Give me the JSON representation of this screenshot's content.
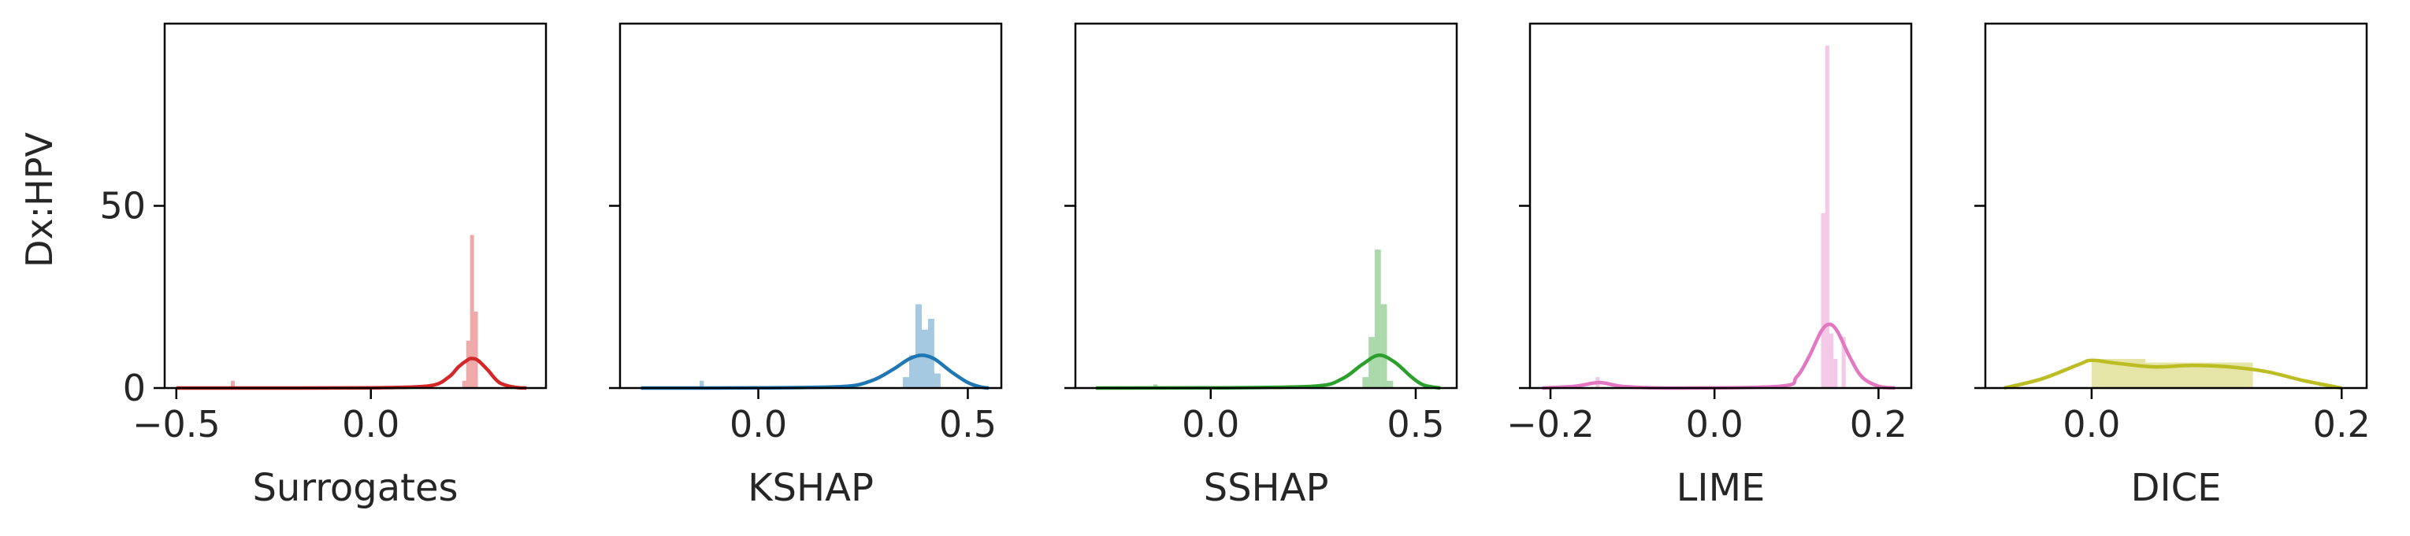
{
  "figure": {
    "ylabel": "Dx:HPV",
    "y_ticks": [
      "0",
      "50"
    ]
  },
  "chart_data": [
    {
      "type": "histogram-kde",
      "xlabel": "Surrogates",
      "color": "#d62728",
      "xlim": [
        -0.53,
        0.45
      ],
      "ylim": [
        0,
        100
      ],
      "x_ticks": [
        {
          "value": -0.5,
          "label": "−0.5"
        },
        {
          "value": 0.0,
          "label": "0.0"
        }
      ],
      "bars": [
        {
          "x0": -0.36,
          "x1": -0.35,
          "height": 2
        },
        {
          "x0": 0.235,
          "x1": 0.245,
          "height": 2
        },
        {
          "x0": 0.245,
          "x1": 0.255,
          "height": 13
        },
        {
          "x0": 0.255,
          "x1": 0.265,
          "height": 42
        },
        {
          "x0": 0.265,
          "x1": 0.275,
          "height": 21
        }
      ],
      "kde": [
        [
          -0.5,
          0
        ],
        [
          -0.2,
          0
        ],
        [
          0.0,
          0.05
        ],
        [
          0.15,
          0.6
        ],
        [
          0.2,
          3
        ],
        [
          0.225,
          5.8
        ],
        [
          0.25,
          7.8
        ],
        [
          0.26,
          8.1
        ],
        [
          0.275,
          7.6
        ],
        [
          0.3,
          5
        ],
        [
          0.33,
          1.5
        ],
        [
          0.37,
          0.2
        ],
        [
          0.4,
          0
        ]
      ]
    },
    {
      "type": "histogram-kde",
      "xlabel": "KSHAP",
      "color": "#1f77b4",
      "xlim": [
        -0.33,
        0.58
      ],
      "ylim": [
        0,
        100
      ],
      "x_ticks": [
        {
          "value": 0.0,
          "label": "0.0"
        },
        {
          "value": 0.5,
          "label": "0.5"
        }
      ],
      "bars": [
        {
          "x0": -0.14,
          "x1": -0.13,
          "height": 2
        },
        {
          "x0": 0.345,
          "x1": 0.36,
          "height": 3
        },
        {
          "x0": 0.36,
          "x1": 0.375,
          "height": 9
        },
        {
          "x0": 0.375,
          "x1": 0.39,
          "height": 23
        },
        {
          "x0": 0.39,
          "x1": 0.405,
          "height": 16
        },
        {
          "x0": 0.405,
          "x1": 0.42,
          "height": 19
        },
        {
          "x0": 0.42,
          "x1": 0.435,
          "height": 4
        }
      ],
      "kde": [
        [
          -0.28,
          0
        ],
        [
          0.0,
          0.05
        ],
        [
          0.2,
          0.4
        ],
        [
          0.27,
          2
        ],
        [
          0.32,
          5
        ],
        [
          0.36,
          8
        ],
        [
          0.39,
          9
        ],
        [
          0.42,
          8
        ],
        [
          0.46,
          4.5
        ],
        [
          0.5,
          1.5
        ],
        [
          0.53,
          0.3
        ],
        [
          0.55,
          0
        ]
      ]
    },
    {
      "type": "histogram-kde",
      "xlabel": "SSHAP",
      "color": "#2ca02c",
      "xlim": [
        -0.33,
        0.6
      ],
      "ylim": [
        0,
        100
      ],
      "x_ticks": [
        {
          "value": 0.0,
          "label": "0.0"
        },
        {
          "value": 0.5,
          "label": "0.5"
        }
      ],
      "bars": [
        {
          "x0": -0.14,
          "x1": -0.13,
          "height": 1
        },
        {
          "x0": 0.37,
          "x1": 0.385,
          "height": 3
        },
        {
          "x0": 0.385,
          "x1": 0.4,
          "height": 14
        },
        {
          "x0": 0.4,
          "x1": 0.415,
          "height": 38
        },
        {
          "x0": 0.415,
          "x1": 0.43,
          "height": 23
        },
        {
          "x0": 0.43,
          "x1": 0.445,
          "height": 2
        }
      ],
      "kde": [
        [
          -0.28,
          0
        ],
        [
          0.0,
          0.05
        ],
        [
          0.25,
          0.5
        ],
        [
          0.32,
          2.5
        ],
        [
          0.37,
          6.5
        ],
        [
          0.41,
          9
        ],
        [
          0.45,
          7
        ],
        [
          0.49,
          3
        ],
        [
          0.52,
          0.8
        ],
        [
          0.56,
          0
        ]
      ]
    },
    {
      "type": "histogram-kde",
      "xlabel": "LIME",
      "color": "#e377c2",
      "xlim": [
        -0.225,
        0.24
      ],
      "ylim": [
        0,
        100
      ],
      "x_ticks": [
        {
          "value": -0.2,
          "label": "−0.2"
        },
        {
          "value": 0.0,
          "label": "0.0"
        },
        {
          "value": 0.2,
          "label": "0.2"
        }
      ],
      "bars": [
        {
          "x0": -0.145,
          "x1": -0.14,
          "height": 3
        },
        {
          "x0": 0.13,
          "x1": 0.135,
          "height": 48
        },
        {
          "x0": 0.135,
          "x1": 0.14,
          "height": 94
        },
        {
          "x0": 0.14,
          "x1": 0.145,
          "height": 15
        },
        {
          "x0": 0.145,
          "x1": 0.15,
          "height": 8
        },
        {
          "x0": 0.155,
          "x1": 0.16,
          "height": 14
        }
      ],
      "kde": [
        [
          -0.21,
          0
        ],
        [
          -0.17,
          0.5
        ],
        [
          -0.14,
          1.5
        ],
        [
          -0.11,
          0.4
        ],
        [
          -0.05,
          0
        ],
        [
          0.08,
          0.5
        ],
        [
          0.1,
          3
        ],
        [
          0.115,
          8.5
        ],
        [
          0.13,
          15.5
        ],
        [
          0.14,
          17.5
        ],
        [
          0.15,
          15.5
        ],
        [
          0.165,
          8.5
        ],
        [
          0.18,
          3
        ],
        [
          0.2,
          0.5
        ],
        [
          0.22,
          0
        ]
      ]
    },
    {
      "type": "histogram-kde",
      "xlabel": "DICE",
      "color": "#bcbd22",
      "xlim": [
        -0.085,
        0.22
      ],
      "ylim": [
        0,
        100
      ],
      "x_ticks": [
        {
          "value": 0.0,
          "label": "0.0"
        },
        {
          "value": 0.2,
          "label": "0.2"
        }
      ],
      "bars": [
        {
          "x0": 0.0,
          "x1": 0.043,
          "height": 8
        },
        {
          "x0": 0.043,
          "x1": 0.086,
          "height": 7
        },
        {
          "x0": 0.086,
          "x1": 0.129,
          "height": 7
        }
      ],
      "kde": [
        [
          -0.07,
          0
        ],
        [
          -0.04,
          2.5
        ],
        [
          -0.01,
          6.5
        ],
        [
          0.0,
          7.6
        ],
        [
          0.02,
          6.8
        ],
        [
          0.05,
          5.8
        ],
        [
          0.08,
          6.2
        ],
        [
          0.11,
          5.8
        ],
        [
          0.14,
          4.5
        ],
        [
          0.17,
          2
        ],
        [
          0.2,
          0
        ]
      ]
    }
  ]
}
